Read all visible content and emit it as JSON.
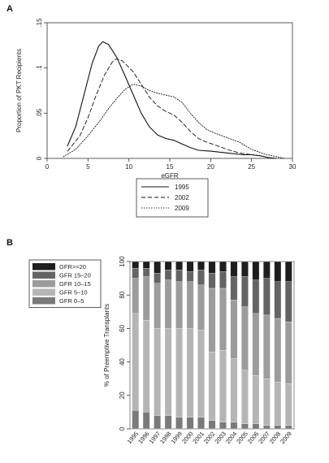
{
  "panel_a": {
    "letter": "A"
  },
  "panel_b": {
    "letter": "B"
  },
  "chart_data": [
    {
      "type": "line",
      "xlabel": "eGFR",
      "ylabel": "Proportion of PKT Recipients",
      "xlim": [
        0,
        30
      ],
      "ylim": [
        0,
        0.15
      ],
      "xticks": [
        "0",
        "5",
        "10",
        "15",
        "20",
        "25",
        "30"
      ],
      "yticks": [
        "0",
        ".05",
        ".1",
        ".15"
      ],
      "legend_position": "bottom-outside",
      "series": [
        {
          "name": "1995",
          "style": "solid",
          "points": [
            [
              2.5,
              0.014
            ],
            [
              3.5,
              0.035
            ],
            [
              4.5,
              0.07
            ],
            [
              5.5,
              0.105
            ],
            [
              6.3,
              0.124
            ],
            [
              6.8,
              0.129
            ],
            [
              7.5,
              0.126
            ],
            [
              8.5,
              0.112
            ],
            [
              9.5,
              0.092
            ],
            [
              10.5,
              0.071
            ],
            [
              11.5,
              0.05
            ],
            [
              12.5,
              0.035
            ],
            [
              13.5,
              0.026
            ],
            [
              14.5,
              0.022
            ],
            [
              15.5,
              0.02
            ],
            [
              16.5,
              0.016
            ],
            [
              17.5,
              0.012
            ],
            [
              18.5,
              0.009
            ],
            [
              20,
              0.008
            ],
            [
              22,
              0.006
            ],
            [
              24,
              0.004
            ],
            [
              25,
              0.004
            ],
            [
              26,
              0.003
            ],
            [
              27,
              0.001
            ],
            [
              28,
              0.0
            ]
          ]
        },
        {
          "name": "2002",
          "style": "dashed",
          "points": [
            [
              2.5,
              0.008
            ],
            [
              4,
              0.025
            ],
            [
              5,
              0.045
            ],
            [
              6,
              0.07
            ],
            [
              7,
              0.092
            ],
            [
              8,
              0.107
            ],
            [
              8.5,
              0.11
            ],
            [
              9.2,
              0.108
            ],
            [
              10.5,
              0.096
            ],
            [
              11.5,
              0.082
            ],
            [
              12.5,
              0.068
            ],
            [
              13.5,
              0.058
            ],
            [
              14.5,
              0.052
            ],
            [
              15.5,
              0.048
            ],
            [
              16.5,
              0.04
            ],
            [
              17.5,
              0.03
            ],
            [
              18.5,
              0.022
            ],
            [
              19.5,
              0.018
            ],
            [
              20.5,
              0.015
            ],
            [
              22,
              0.01
            ],
            [
              23.5,
              0.006
            ],
            [
              25,
              0.004
            ],
            [
              26,
              0.003
            ],
            [
              27,
              0.001
            ]
          ]
        },
        {
          "name": "2009",
          "style": "dotted",
          "points": [
            [
              2,
              0.002
            ],
            [
              3.5,
              0.01
            ],
            [
              5,
              0.025
            ],
            [
              6.5,
              0.042
            ],
            [
              7.5,
              0.055
            ],
            [
              8.5,
              0.066
            ],
            [
              9.5,
              0.076
            ],
            [
              10.5,
              0.082
            ],
            [
              11.5,
              0.08
            ],
            [
              12.5,
              0.075
            ],
            [
              13.5,
              0.072
            ],
            [
              14.5,
              0.07
            ],
            [
              15.5,
              0.068
            ],
            [
              16.5,
              0.062
            ],
            [
              17.5,
              0.05
            ],
            [
              18.5,
              0.04
            ],
            [
              19.5,
              0.032
            ],
            [
              20.5,
              0.028
            ],
            [
              22,
              0.023
            ],
            [
              23.5,
              0.018
            ],
            [
              25,
              0.01
            ],
            [
              26.5,
              0.005
            ],
            [
              28,
              0.002
            ],
            [
              29,
              0.0
            ]
          ]
        }
      ]
    },
    {
      "type": "bar",
      "stacked": true,
      "ylabel": "% of Preemptive Transplants",
      "ylim": [
        0,
        100
      ],
      "yticks": [
        "0",
        "20",
        "40",
        "60",
        "80",
        "100"
      ],
      "legend_position": "top-left",
      "categories": [
        "1995",
        "1996",
        "1997",
        "1998",
        "1999",
        "2000",
        "2001",
        "2002",
        "2003",
        "2004",
        "2005",
        "2006",
        "2007",
        "2008",
        "2009"
      ],
      "colors": [
        "#7a7a7a",
        "#b5b5b5",
        "#9c9c9c",
        "#646464",
        "#1e1e1e"
      ],
      "series": [
        {
          "name": "GFR 0–5",
          "values": [
            11,
            10,
            8,
            8,
            7,
            7,
            7,
            5,
            4,
            4,
            3,
            3,
            2,
            2,
            2
          ]
        },
        {
          "name": "GFR 5–10",
          "values": [
            58,
            55,
            52,
            52,
            53,
            53,
            52,
            41,
            43,
            38,
            32,
            29,
            28,
            26,
            25
          ]
        },
        {
          "name": "GFR 10–15",
          "values": [
            21,
            26,
            27,
            29,
            28,
            28,
            27,
            38,
            37,
            35,
            38,
            37,
            38,
            38,
            37
          ]
        },
        {
          "name": "GFR 15–20",
          "values": [
            6,
            5,
            6,
            6,
            7,
            6,
            9,
            9,
            10,
            14,
            18,
            20,
            22,
            22,
            24
          ]
        },
        {
          "name": "GFR>=20",
          "values": [
            4,
            4,
            7,
            5,
            5,
            6,
            5,
            7,
            6,
            9,
            9,
            11,
            10,
            12,
            12
          ]
        }
      ]
    }
  ]
}
